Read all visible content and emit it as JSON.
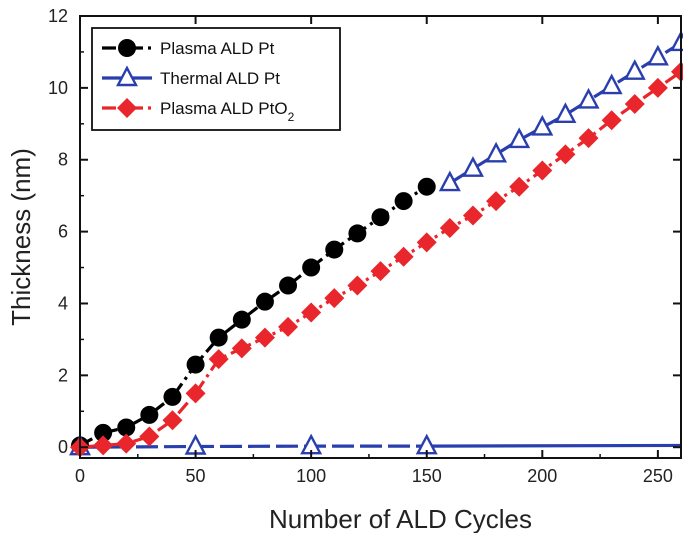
{
  "chart_data": {
    "type": "line",
    "title": "",
    "xlabel": "Number of ALD Cycles",
    "ylabel": "Thickness (nm)",
    "xlim": [
      0,
      260
    ],
    "ylim": [
      -0.3,
      12
    ],
    "x_ticks": [
      "0",
      "50",
      "100",
      "150",
      "200",
      "250"
    ],
    "y_ticks": [
      "0",
      "2",
      "4",
      "6",
      "8",
      "10",
      "12"
    ],
    "grid": false,
    "legend_position": "top-left",
    "series": [
      {
        "name": "Plasma ALD Pt",
        "legend_main": "Plasma ALD Pt",
        "legend_sub": "",
        "marker": "circle",
        "line_style": "dash-dot",
        "color": "#000000",
        "x": [
          0,
          10,
          20,
          30,
          40,
          50,
          60,
          70,
          80,
          90,
          100,
          110,
          120,
          130,
          140,
          150
        ],
        "y": [
          0.05,
          0.4,
          0.55,
          0.9,
          1.4,
          2.3,
          3.05,
          3.55,
          4.05,
          4.5,
          5.0,
          5.5,
          5.95,
          6.4,
          6.85,
          7.25
        ]
      },
      {
        "name": "Thermal ALD Pt",
        "legend_main": "Thermal ALD Pt",
        "legend_sub": "",
        "marker": "triangle-open",
        "line_style": "solid-dash",
        "color": "#2a3fae",
        "x": [
          0,
          50,
          100,
          150,
          160,
          170,
          180,
          190,
          200,
          210,
          220,
          230,
          240,
          250,
          260
        ],
        "y": [
          0.0,
          0.02,
          0.03,
          0.03,
          7.35,
          7.75,
          8.15,
          8.55,
          8.9,
          9.25,
          9.65,
          10.05,
          10.45,
          10.85,
          11.25
        ],
        "segments": [
          [
            0,
            3
          ],
          [
            4,
            14
          ]
        ],
        "continuation": {
          "x": [
            150,
            260
          ],
          "y": [
            0.03,
            0.05
          ]
        }
      },
      {
        "name": "Plasma ALD PtO2",
        "legend_main": "Plasma ALD PtO",
        "legend_sub": "2",
        "marker": "diamond",
        "line_style": "dash-dot",
        "color": "#e8262b",
        "x": [
          0,
          10,
          20,
          30,
          40,
          50,
          60,
          70,
          80,
          90,
          100,
          110,
          120,
          130,
          140,
          150,
          160,
          170,
          180,
          190,
          200,
          210,
          220,
          230,
          240,
          250,
          260
        ],
        "y": [
          0.0,
          0.05,
          0.1,
          0.3,
          0.75,
          1.5,
          2.45,
          2.75,
          3.05,
          3.35,
          3.75,
          4.15,
          4.5,
          4.9,
          5.3,
          5.7,
          6.1,
          6.45,
          6.85,
          7.25,
          7.7,
          8.15,
          8.6,
          9.1,
          9.55,
          10.0,
          10.45
        ]
      }
    ]
  }
}
